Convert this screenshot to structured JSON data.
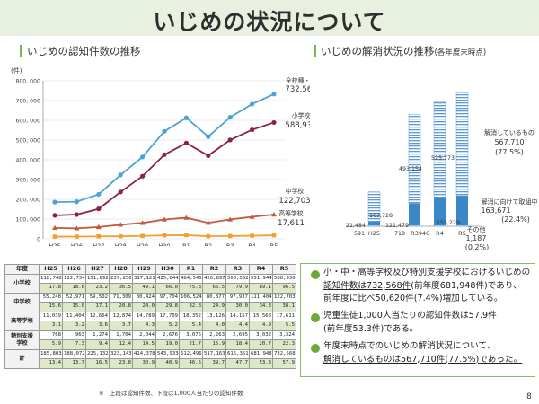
{
  "page": {
    "title": "いじめの状況について",
    "page_number": "8"
  },
  "left_section": {
    "title": "いじめの認知件数の推移"
  },
  "right_section": {
    "title_main": "いじめの解消状況の推移",
    "title_sub": "(各年度末時点)"
  },
  "colors": {
    "total": "#4aa3d8",
    "elementary": "#8e1f4a",
    "junior_high": "#c05a3c",
    "high_school": "#f0a030",
    "accent_green": "#6aaa3a",
    "resolved_bar": "#5b9bd5",
    "in_progress_bar": "#3a88c8"
  },
  "chart_data": [
    {
      "type": "line",
      "title": "いじめの認知件数の推移",
      "ylabel": "(件)",
      "ylim": [
        0,
        800000
      ],
      "yticks": [
        "0",
        "100, 000",
        "200, 000",
        "300, 000",
        "400, 000",
        "500, 000",
        "600, 000",
        "700, 000",
        "800, 000"
      ],
      "x": [
        "H25",
        "H26",
        "H27",
        "H28",
        "H29",
        "H30",
        "R1",
        "R2",
        "R3",
        "R4",
        "R5"
      ],
      "series": [
        {
          "name": "全校種・計",
          "end_label": "732,568",
          "values": [
            185803,
            188072,
            225132,
            323143,
            414378,
            543933,
            612496,
            517163,
            615351,
            681948,
            732568
          ]
        },
        {
          "name": "小学校",
          "end_label": "588,930",
          "values": [
            118748,
            122734,
            151692,
            237256,
            317121,
            425844,
            484545,
            420897,
            500562,
            551944,
            588930
          ]
        },
        {
          "name": "中学校",
          "end_label": "122,703",
          "values": [
            55248,
            52971,
            59502,
            71309,
            80424,
            97704,
            106524,
            80877,
            97937,
            111404,
            122703
          ]
        },
        {
          "name": "高等学校",
          "end_label": "17,611",
          "values": [
            11039,
            11404,
            12664,
            12874,
            14789,
            17709,
            18352,
            13126,
            14157,
            15568,
            17611
          ]
        }
      ]
    },
    {
      "type": "bar",
      "title": "いじめの解消状況の推移",
      "categories": [
        "H25",
        "R3",
        "R4",
        "R5"
      ],
      "series": [
        {
          "name": "解消しているもの",
          "values": [
            163728,
            493154,
            525773,
            567710
          ]
        },
        {
          "name": "解消に向けて取組中",
          "values": [
            21484,
            121479,
            155229,
            163671
          ]
        },
        {
          "name": "その他",
          "values": [
            591,
            718,
            946,
            1187
          ]
        }
      ],
      "bar_labels": {
        "H25": {
          "resolved": "163,728",
          "in_progress": "21,484",
          "other": "591"
        },
        "R3": {
          "resolved": "493,154",
          "in_progress": "121,479",
          "other": "718"
        },
        "R4": {
          "resolved": "525,773",
          "in_progress": "155,229",
          "other": "946"
        }
      },
      "legend": {
        "resolved": {
          "label": "解消しているもの",
          "value": "567,710",
          "pct": "(77.5%)"
        },
        "in_progress": {
          "label": "解消に向けて取組中",
          "value": "163,671",
          "pct": "(22.4%)"
        },
        "other": {
          "label": "その他",
          "value": "1,187",
          "pct": "(0.2%)"
        }
      }
    },
    {
      "type": "table",
      "corner": "年度",
      "years": [
        "H25",
        "H26",
        "H27",
        "H28",
        "H29",
        "H30",
        "R1",
        "R2",
        "R3",
        "R4",
        "R5"
      ],
      "rows": [
        {
          "label": "小学校",
          "counts": [
            "118,748",
            "122,734",
            "151,692",
            "237,256",
            "317,121",
            "425,844",
            "484,545",
            "420,897",
            "500,562",
            "551,944",
            "588,930"
          ],
          "rates": [
            "17.8",
            "18.6",
            "23.2",
            "36.5",
            "49.1",
            "66.0",
            "75.8",
            "66.5",
            "79.9",
            "89.1",
            "96.5"
          ]
        },
        {
          "label": "中学校",
          "counts": [
            "55,248",
            "52,971",
            "59,502",
            "71,309",
            "80,424",
            "97,704",
            "106,524",
            "80,877",
            "97,937",
            "111,404",
            "122,703"
          ],
          "rates": [
            "15.6",
            "15.0",
            "17.1",
            "20.8",
            "24.0",
            "29.8",
            "32.8",
            "24.9",
            "30.0",
            "34.3",
            "38.1"
          ]
        },
        {
          "label": "高等学校",
          "counts": [
            "11,039",
            "11,404",
            "12,664",
            "12,874",
            "14,789",
            "17,709",
            "18,352",
            "13,126",
            "14,157",
            "15,568",
            "17,611"
          ],
          "rates": [
            "3.1",
            "3.2",
            "3.6",
            "3.7",
            "4.3",
            "5.2",
            "5.4",
            "4.0",
            "4.4",
            "4.9",
            "5.5"
          ]
        },
        {
          "label": "特別支援学校",
          "label_l1": "特別支援",
          "label_l2": "学校",
          "counts": [
            "768",
            "963",
            "1,274",
            "1,704",
            "2,044",
            "2,676",
            "3,075",
            "2,263",
            "2,695",
            "3,032",
            "3,324"
          ],
          "rates": [
            "5.9",
            "7.3",
            "9.4",
            "12.4",
            "14.5",
            "19.0",
            "21.7",
            "15.9",
            "18.4",
            "20.7",
            "22.3"
          ]
        },
        {
          "label": "計",
          "counts": [
            "185,803",
            "188,072",
            "225,132",
            "323,143",
            "414,378",
            "543,933",
            "612,496",
            "517,163",
            "615,351",
            "681,948",
            "732,568"
          ],
          "rates": [
            "13.4",
            "13.7",
            "16.5",
            "23.8",
            "30.9",
            "40.9",
            "46.5",
            "39.7",
            "47.7",
            "53.3",
            "57.9"
          ]
        }
      ],
      "note": "※　上段は認知件数、下段は1,000人当たりの認知件数"
    }
  ],
  "summary": {
    "b1_l1": "小・中・高等学校及び特別支援学校におけるいじめの",
    "b1_l2a": "認知件数は732,568件",
    "b1_l2b": "(前年度681,948件)であり、",
    "b1_l3": "前年度に比べ50,620件(7.4%)増加している。",
    "b2_l1": "児童生徒1,000人当たりの認知件数は57.9件",
    "b2_l2": "(前年度53.3件)である。",
    "b3_l1": "年度末時点でのいじめの解消状況について、",
    "b3_l2": "解消しているものは567,710件(77.5%)であった。"
  }
}
